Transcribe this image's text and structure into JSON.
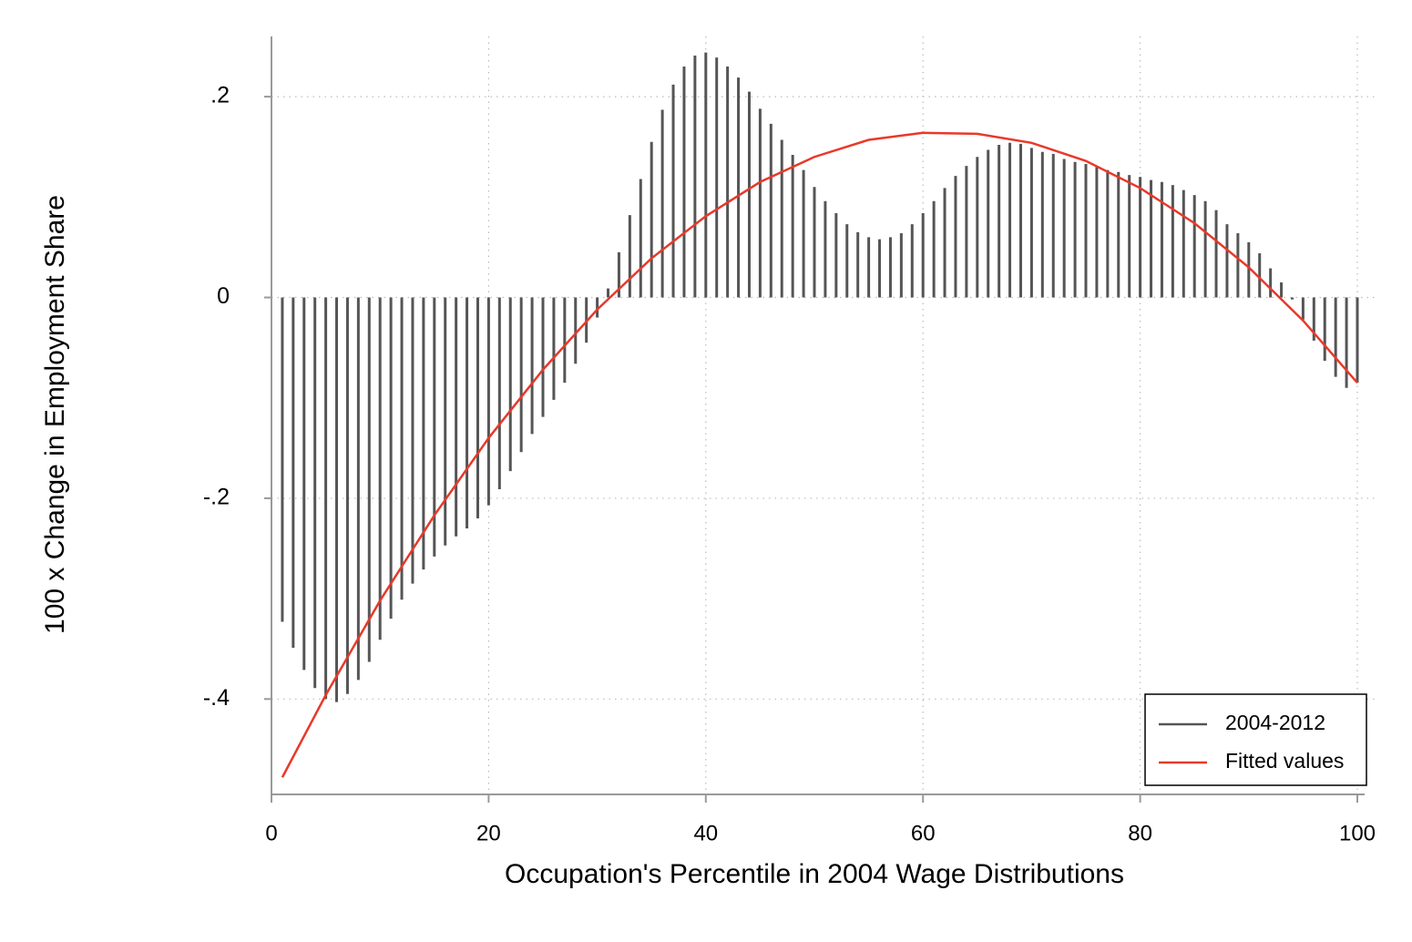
{
  "chart_data": {
    "type": "spike",
    "x_label": "Occupation's Percentile in 2004 Wage Distributions",
    "y_label": "100 x Change in Employment Share",
    "xlim": [
      0,
      100
    ],
    "ylim": [
      -0.495,
      0.26
    ],
    "xticks": [
      0,
      20,
      40,
      60,
      80,
      100
    ],
    "yticks": [
      {
        "value": 0.2,
        "label": ".2"
      },
      0,
      {
        "value": -0.2,
        "label": "-.2"
      },
      {
        "value": -0.4,
        "label": "-.4"
      }
    ],
    "grid": true,
    "legend_position": "lower-right",
    "series": [
      {
        "name": "2004-2012",
        "color": "#555555",
        "kind": "spike",
        "x": [
          1,
          2,
          3,
          4,
          5,
          6,
          7,
          8,
          9,
          10,
          11,
          12,
          13,
          14,
          15,
          16,
          17,
          18,
          19,
          20,
          21,
          22,
          23,
          24,
          25,
          26,
          27,
          28,
          29,
          30,
          31,
          32,
          33,
          34,
          35,
          36,
          37,
          38,
          39,
          40,
          41,
          42,
          43,
          44,
          45,
          46,
          47,
          48,
          49,
          50,
          51,
          52,
          53,
          54,
          55,
          56,
          57,
          58,
          59,
          60,
          61,
          62,
          63,
          64,
          65,
          66,
          67,
          68,
          69,
          70,
          71,
          72,
          73,
          74,
          75,
          76,
          77,
          78,
          79,
          80,
          81,
          82,
          83,
          84,
          85,
          86,
          87,
          88,
          89,
          90,
          91,
          92,
          93,
          94,
          95,
          96,
          97,
          98,
          99,
          100
        ],
        "values": [
          -0.323,
          -0.349,
          -0.371,
          -0.389,
          -0.4,
          -0.403,
          -0.395,
          -0.381,
          -0.363,
          -0.341,
          -0.32,
          -0.301,
          -0.285,
          -0.271,
          -0.258,
          -0.247,
          -0.238,
          -0.23,
          -0.22,
          -0.207,
          -0.191,
          -0.173,
          -0.154,
          -0.136,
          -0.119,
          -0.102,
          -0.085,
          -0.066,
          -0.045,
          -0.02,
          0.009,
          0.045,
          0.082,
          0.118,
          0.155,
          0.187,
          0.212,
          0.23,
          0.241,
          0.244,
          0.239,
          0.23,
          0.219,
          0.205,
          0.188,
          0.173,
          0.157,
          0.142,
          0.127,
          0.11,
          0.096,
          0.084,
          0.073,
          0.065,
          0.06,
          0.058,
          0.06,
          0.064,
          0.073,
          0.084,
          0.096,
          0.109,
          0.121,
          0.131,
          0.14,
          0.147,
          0.152,
          0.154,
          0.153,
          0.149,
          0.145,
          0.143,
          0.138,
          0.135,
          0.133,
          0.13,
          0.127,
          0.125,
          0.122,
          0.12,
          0.117,
          0.115,
          0.112,
          0.107,
          0.102,
          0.096,
          0.087,
          0.073,
          0.064,
          0.055,
          0.044,
          0.029,
          0.015,
          -0.002,
          -0.022,
          -0.043,
          -0.063,
          -0.079,
          -0.09,
          -0.085
        ]
      },
      {
        "name": "Fitted values",
        "color": "#e8392a",
        "kind": "line",
        "x": [
          1,
          5,
          10,
          15,
          20,
          25,
          30,
          35,
          40,
          45,
          50,
          55,
          60,
          65,
          70,
          75,
          80,
          85,
          90,
          95,
          100
        ],
        "values": [
          -0.478,
          -0.396,
          -0.302,
          -0.217,
          -0.14,
          -0.072,
          -0.012,
          0.039,
          0.081,
          0.115,
          0.14,
          0.157,
          0.164,
          0.163,
          0.154,
          0.136,
          0.109,
          0.074,
          0.03,
          -0.023,
          -0.085
        ]
      }
    ]
  }
}
